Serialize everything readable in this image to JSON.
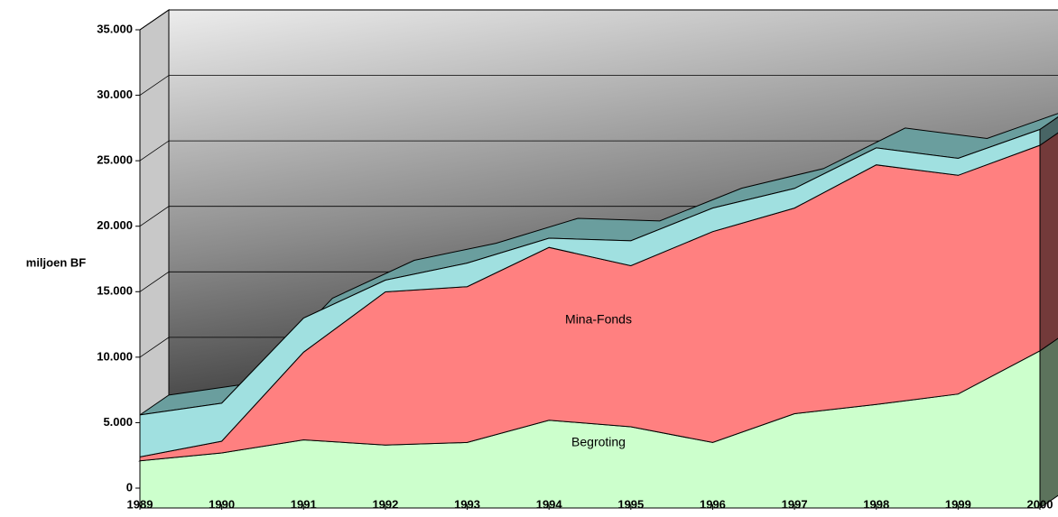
{
  "chart_data": {
    "type": "area3d",
    "stacked": true,
    "y_label": "miljoen BF",
    "categories": [
      "1989",
      "1990",
      "1991",
      "1992",
      "1993",
      "1994",
      "1995",
      "1996",
      "1997",
      "1998",
      "1999",
      "2000"
    ],
    "series": [
      {
        "name": "Begroting",
        "color": "#ccffcc",
        "values": [
          3600,
          4200,
          5200,
          4800,
          5000,
          6700,
          6200,
          5000,
          7200,
          7900,
          8700,
          12000
        ]
      },
      {
        "name": "Mina-Fonds",
        "color": "#ff8080",
        "values": [
          300,
          900,
          6700,
          11700,
          11900,
          13200,
          12300,
          16100,
          15700,
          18300,
          16700,
          15700
        ]
      },
      {
        "color": "#a0e0e0",
        "values": [
          3200,
          2900,
          2600,
          900,
          1800,
          700,
          1900,
          1800,
          1500,
          1300,
          1300,
          1200
        ]
      }
    ],
    "ylim": [
      0,
      35000
    ],
    "yticks": [
      {
        "value": 0,
        "label": "0"
      },
      {
        "value": 5000,
        "label": "5.000"
      },
      {
        "value": 10000,
        "label": "10.000"
      },
      {
        "value": 15000,
        "label": "15.000"
      },
      {
        "value": 20000,
        "label": "20.000"
      },
      {
        "value": 25000,
        "label": "25.000"
      },
      {
        "value": 30000,
        "label": "30.000"
      },
      {
        "value": 35000,
        "label": "35.000"
      }
    ],
    "grid": true
  }
}
